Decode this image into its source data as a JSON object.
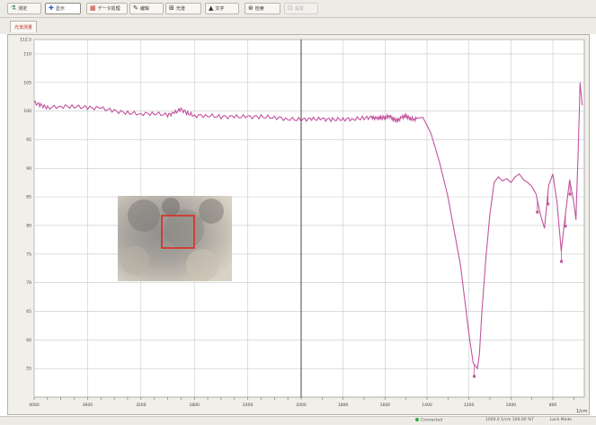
{
  "toolbar": {
    "buttons": [
      {
        "label": "测定",
        "icon": "flask-icon"
      },
      {
        "label": "显示",
        "icon": "arrow-icon",
        "active": true
      },
      {
        "label": "データ処理",
        "icon": "data-icon"
      },
      {
        "label": "编辑",
        "icon": "pencil-icon"
      },
      {
        "label": "光谱",
        "icon": "spectrum-icon"
      },
      {
        "label": "文字",
        "icon": "text-icon"
      },
      {
        "label": "检索",
        "icon": "search-icon"
      },
      {
        "label": "设定",
        "icon": "settings-icon",
        "disabled": true
      }
    ]
  },
  "tab": {
    "label": "光谱测量"
  },
  "chart_data": {
    "type": "line",
    "xlim": [
      4000,
      650
    ],
    "ylim": [
      50,
      112.5
    ],
    "x_ticks": [
      4000,
      3600,
      3200,
      2800,
      2400,
      2000,
      1800,
      1600,
      1400,
      1200,
      1000,
      800
    ],
    "x_tick_labels": [
      "4000",
      "3600",
      "3200",
      "2800",
      "2400",
      "2000",
      "1800",
      "1600",
      "1400",
      "1200",
      "1000",
      "800"
    ],
    "x_unit": "1/cm",
    "y_ticks": [
      112.5,
      110,
      105,
      100,
      95,
      90,
      85,
      80,
      75,
      70,
      65,
      60,
      55
    ],
    "y_tick_labels": [
      "112.5",
      "110",
      "105",
      "100",
      "95",
      "90",
      "85",
      "80",
      "75",
      "70",
      "65",
      "60",
      "55"
    ],
    "y_unit": "%T",
    "grid": true,
    "series": [
      {
        "color": "#c2549e",
        "x": [
          4000,
          3950,
          3900,
          3800,
          3700,
          3600,
          3500,
          3400,
          3300,
          3200,
          3100,
          3000,
          2950,
          2900,
          2850,
          2800,
          2700,
          2600,
          2500,
          2400,
          2300,
          2200,
          2100,
          2000,
          1950,
          1900,
          1850,
          1800,
          1750,
          1700,
          1660,
          1640,
          1620,
          1600,
          1580,
          1560,
          1540,
          1520,
          1500,
          1480,
          1460,
          1440,
          1420,
          1400,
          1380,
          1360,
          1340,
          1320,
          1300,
          1280,
          1260,
          1240,
          1220,
          1200,
          1180,
          1160,
          1150,
          1140,
          1120,
          1100,
          1080,
          1060,
          1040,
          1020,
          1000,
          980,
          960,
          940,
          920,
          900,
          880,
          860,
          840,
          820,
          800,
          780,
          760,
          740,
          720,
          700,
          690,
          680,
          670,
          660
        ],
        "y": [
          101.5,
          101.0,
          100.6,
          100.8,
          100.8,
          100.6,
          100.5,
          100.0,
          99.7,
          99.5,
          99.6,
          99.3,
          99.7,
          100.3,
          99.6,
          99.2,
          99.2,
          99.0,
          99.0,
          99.0,
          99.0,
          98.9,
          98.6,
          98.5,
          98.6,
          98.6,
          98.5,
          98.6,
          98.6,
          98.8,
          98.9,
          98.7,
          98.8,
          98.9,
          99.2,
          98.6,
          98.3,
          98.9,
          99.1,
          98.7,
          98.6,
          98.8,
          98.9,
          97.5,
          96.0,
          93.5,
          91.0,
          88.0,
          85.0,
          81.0,
          77.0,
          73.0,
          67.0,
          61.0,
          56.0,
          55.0,
          57.5,
          64.0,
          74.0,
          82.0,
          87.5,
          88.5,
          87.8,
          88.2,
          87.5,
          88.5,
          89.0,
          88.0,
          87.5,
          86.8,
          85.5,
          82.0,
          79.5,
          87.0,
          89.0,
          84.0,
          75.5,
          82.0,
          88.0,
          84.0,
          81.0,
          92.0,
          105.0,
          101.0
        ]
      }
    ],
    "markers_x": [
      1175,
      874,
      823,
      759,
      740,
      718
    ]
  },
  "inset": {
    "description_icon": "microscope-image-icon"
  },
  "statusbar": {
    "item1": "Connected",
    "item2": "1000.0 1/cm  100.00 %T",
    "item3": "Lock  Mode"
  }
}
